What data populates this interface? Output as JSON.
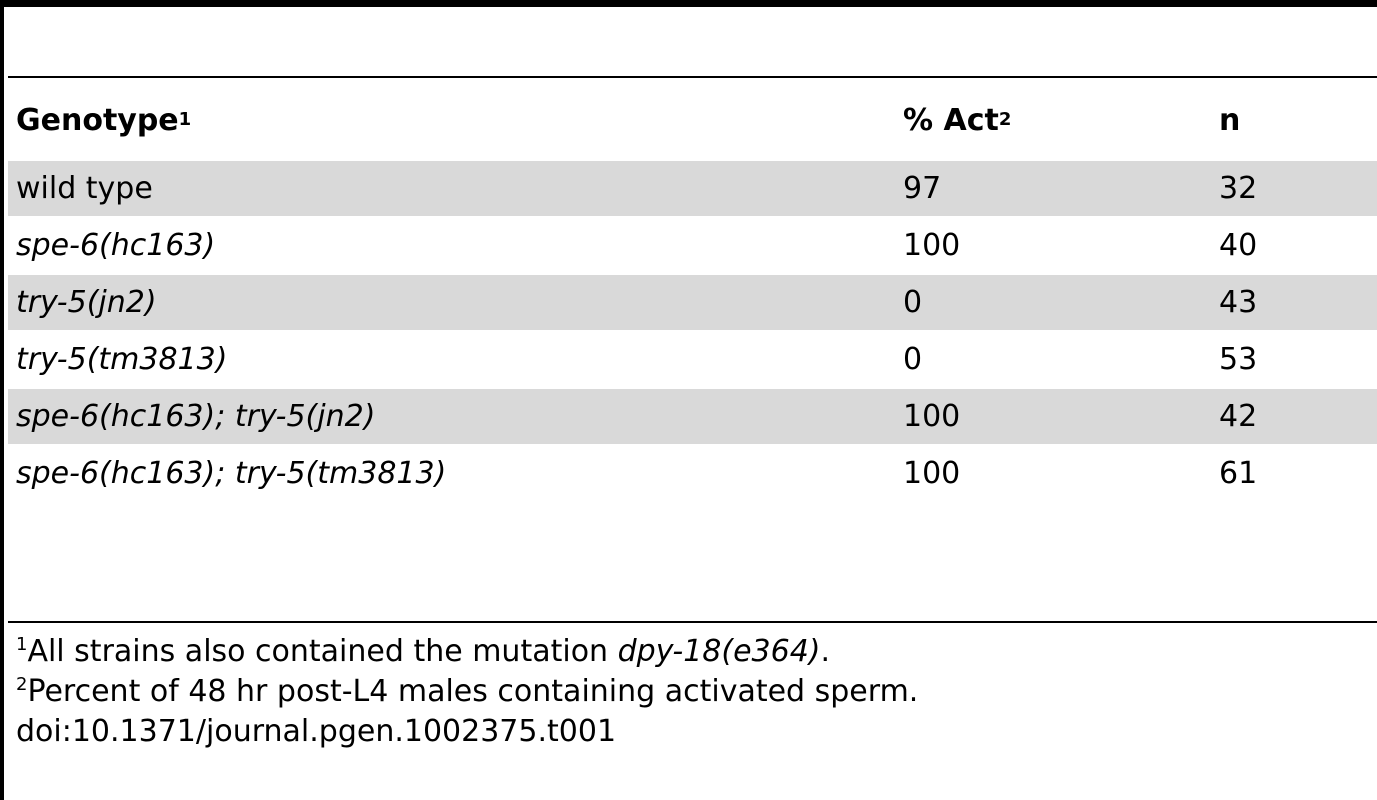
{
  "table": {
    "headers": {
      "genotype": "Genotype",
      "genotype_sup": "1",
      "act": "% Act",
      "act_sup": "2",
      "n": "n"
    },
    "rows": [
      {
        "genotype": "wild type",
        "italic": false,
        "act": "97",
        "n": "32",
        "shaded": true
      },
      {
        "genotype": "spe-6(hc163)",
        "italic": true,
        "act": "100",
        "n": "40",
        "shaded": false
      },
      {
        "genotype": "try-5(jn2)",
        "italic": true,
        "act": "0",
        "n": "43",
        "shaded": true
      },
      {
        "genotype": "try-5(tm3813)",
        "italic": true,
        "act": "0",
        "n": "53",
        "shaded": false
      },
      {
        "genotype": "spe-6(hc163); try-5(jn2)",
        "italic": true,
        "act": "100",
        "n": "42",
        "shaded": true
      },
      {
        "genotype": "spe-6(hc163); try-5(tm3813)",
        "italic": true,
        "act": "100",
        "n": "61",
        "shaded": false
      }
    ]
  },
  "footnotes": {
    "note1_marker": "1",
    "note1_text": "All strains also contained the mutation ",
    "note1_italic": "dpy-18(e364)",
    "note1_end": ".",
    "note2_marker": "2",
    "note2_text": "Percent of 48 hr post-L4 males containing activated sperm.",
    "doi": "doi:10.1371/journal.pgen.1002375.t001"
  },
  "colors": {
    "row_shade": "#d9d9d9",
    "rule": "#000000"
  }
}
